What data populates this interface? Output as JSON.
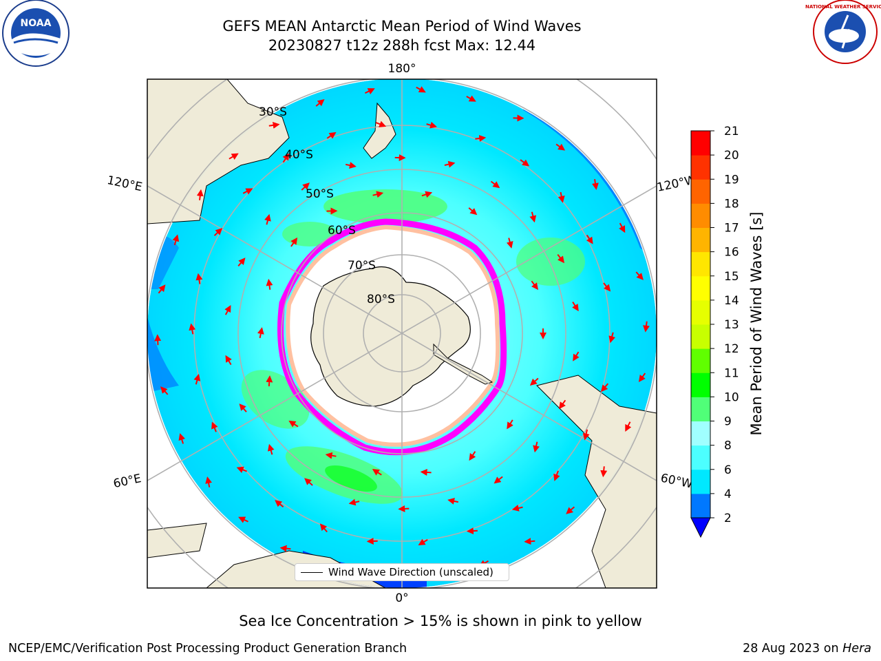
{
  "title": {
    "line1": "GEFS MEAN Antarctic Mean Period of Wind Waves",
    "line2": "20230827 t12z 288h fcst   Max: 12.44"
  },
  "map": {
    "projection": "south-polar-stereographic",
    "meridian_labels": {
      "top": "180°",
      "bottom": "0°",
      "upper_left": "120°E",
      "upper_right": "120°W",
      "lower_left": "60°E",
      "lower_right": "60°W"
    },
    "parallel_labels": [
      "30°S",
      "40°S",
      "50°S",
      "60°S",
      "70°S",
      "80°S"
    ],
    "colors": {
      "ocean_base": "#00ffff",
      "land": "#efebd8",
      "sea_ice_edge": "#ff00ff",
      "arrows": "#ff0000",
      "graticule": "#b0b0b0"
    }
  },
  "legend": {
    "label": "Wind Wave Direction (unscaled)"
  },
  "colorbar": {
    "label": "Mean Period of Wind Waves [s]",
    "ticks": [
      "2",
      "4",
      "6",
      "8",
      "9",
      "10",
      "11",
      "12",
      "13",
      "14",
      "15",
      "16",
      "17",
      "18",
      "19",
      "20",
      "21"
    ],
    "colors": [
      "#0078ff",
      "#00e8ff",
      "#4cffff",
      "#a0ffff",
      "#50ff78",
      "#00ff00",
      "#60ff00",
      "#c8ff00",
      "#e6ff00",
      "#ffff00",
      "#ffe600",
      "#ffb400",
      "#ff8c00",
      "#ff6400",
      "#ff3200",
      "#ff0000"
    ],
    "extend_color": "#0000ff"
  },
  "footer": {
    "note": "Sea Ice Concentration > 15% is shown in pink to yellow",
    "credit": "NCEP/EMC/Verification Post Processing Product Generation Branch",
    "date_prefix": "28 Aug 2023 on",
    "machine": "Hera"
  },
  "logos": {
    "left": "NOAA",
    "right": "NATIONAL WEATHER SERVICE"
  }
}
